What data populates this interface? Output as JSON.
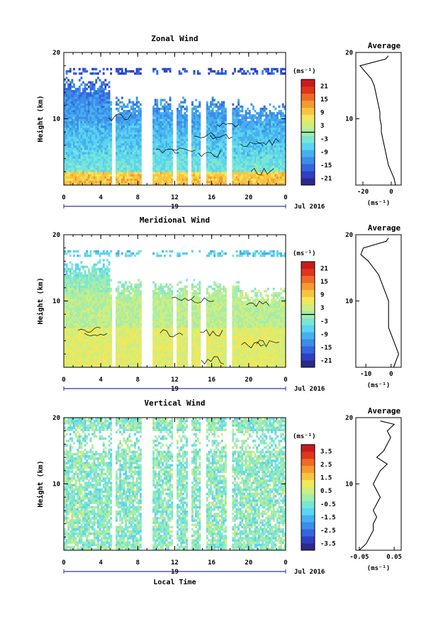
{
  "chart_data": [
    {
      "type": "heatmap",
      "title": "Zonal Wind",
      "ylabel": "Height (km)",
      "ylim": [
        0,
        20
      ],
      "y_ticks": [
        "20",
        "10"
      ],
      "x_ticks": [
        "0",
        "4",
        "8",
        "12",
        "16",
        "20",
        "0"
      ],
      "xlim": [
        0,
        24
      ],
      "day_label": "19",
      "date_label": "Jul 2016",
      "colorbar": {
        "unit": "(ms⁻¹)",
        "ticks": [
          "21",
          "15",
          "9",
          "3",
          "-3",
          "-9",
          "-15",
          "-21"
        ],
        "range": [
          -24,
          24
        ],
        "colors": [
          "#2a2a8c",
          "#2f3fc0",
          "#3366dd",
          "#3c8ce8",
          "#46b0ef",
          "#5ad4f0",
          "#79e6d4",
          "#a4ecac",
          "#cdee7e",
          "#f0e85a",
          "#f8c440",
          "#f59a30",
          "#ee6a25",
          "#e0341e",
          "#c81c1c"
        ]
      },
      "avg_profile": {
        "title": "Average",
        "xlabel": "(ms⁻¹)",
        "x_ticks": [
          "-20",
          "0"
        ],
        "xlim": [
          -25,
          7
        ],
        "heights": [
          0,
          1,
          2,
          3,
          4,
          5,
          6,
          7,
          8,
          9,
          10,
          11,
          12,
          13,
          14,
          15,
          16,
          17,
          18,
          19,
          19.5
        ],
        "values": [
          3,
          2,
          0,
          -2,
          -3,
          -4,
          -5,
          -6,
          -7,
          -7,
          -8,
          -8,
          -9,
          -10,
          -11,
          -12,
          -14,
          -18,
          -22,
          -4,
          -2
        ]
      },
      "base_value": -7,
      "gaps": [
        [
          5.2,
          5.6
        ],
        [
          8.4,
          8.9
        ],
        [
          9.1,
          9.5
        ],
        [
          11.8,
          12.2
        ],
        [
          13.4,
          13.8
        ],
        [
          14.8,
          15.3
        ],
        [
          17.6,
          18.1
        ]
      ]
    },
    {
      "type": "heatmap",
      "title": "Meridional Wind",
      "ylabel": "Height (km)",
      "ylim": [
        0,
        20
      ],
      "y_ticks": [
        "20",
        "10"
      ],
      "x_ticks": [
        "0",
        "4",
        "8",
        "12",
        "16",
        "20",
        "0"
      ],
      "xlim": [
        0,
        24
      ],
      "day_label": "19",
      "date_label": "Jul 2016",
      "colorbar": {
        "unit": "(ms⁻¹)",
        "ticks": [
          "21",
          "15",
          "9",
          "3",
          "-3",
          "-9",
          "-15",
          "-21"
        ],
        "range": [
          -24,
          24
        ],
        "colors": [
          "#2a2a8c",
          "#2f3fc0",
          "#3366dd",
          "#3c8ce8",
          "#46b0ef",
          "#5ad4f0",
          "#79e6d4",
          "#a4ecac",
          "#cdee7e",
          "#f0e85a",
          "#f8c440",
          "#f59a30",
          "#ee6a25",
          "#e0341e",
          "#c81c1c"
        ]
      },
      "avg_profile": {
        "title": "Average",
        "xlabel": "(ms⁻¹)",
        "x_ticks": [
          "-10",
          "0"
        ],
        "xlim": [
          -14,
          4
        ],
        "heights": [
          0,
          1,
          2,
          3,
          4,
          5,
          6,
          7,
          8,
          9,
          10,
          11,
          12,
          13,
          14,
          15,
          16,
          17,
          18,
          19,
          19.5
        ],
        "values": [
          1,
          2,
          3,
          2,
          1,
          0,
          -1,
          -1,
          -1,
          -1,
          -1,
          -2,
          -3,
          -4,
          -5,
          -7,
          -9,
          -12,
          -11,
          -2,
          -1
        ]
      },
      "base_value": 2,
      "gaps": [
        [
          5.2,
          5.6
        ],
        [
          8.4,
          8.9
        ],
        [
          9.1,
          9.5
        ],
        [
          11.8,
          12.2
        ],
        [
          13.4,
          13.8
        ],
        [
          14.8,
          15.3
        ],
        [
          17.6,
          18.1
        ]
      ]
    },
    {
      "type": "heatmap",
      "title": "Vertical Wind",
      "ylabel": "Height (km)",
      "xlabel": "Local Time",
      "ylim": [
        0,
        20
      ],
      "y_ticks": [
        "20",
        "10"
      ],
      "x_ticks": [
        "0",
        "4",
        "8",
        "12",
        "16",
        "20",
        "0"
      ],
      "xlim": [
        0,
        24
      ],
      "day_label": "19",
      "date_label": "Jul 2016",
      "colorbar": {
        "unit": "(ms⁻¹)",
        "ticks": [
          "3.5",
          "2.5",
          "1.5",
          "0.5",
          "-0.5",
          "-1.5",
          "-2.5",
          "-3.5"
        ],
        "range": [
          -4,
          4
        ],
        "colors": [
          "#2a2a8c",
          "#2f3fc0",
          "#3366dd",
          "#3c8ce8",
          "#46b0ef",
          "#5ad4f0",
          "#79e6d4",
          "#a4ecac",
          "#cdee7e",
          "#f0e85a",
          "#f8c440",
          "#f59a30",
          "#ee6a25",
          "#e0341e",
          "#c81c1c"
        ]
      },
      "avg_profile": {
        "title": "Average",
        "xlabel": "(ms⁻¹)",
        "x_ticks": [
          "-0.05",
          "0.05"
        ],
        "xlim": [
          -0.06,
          0.07
        ],
        "heights": [
          0,
          1,
          2,
          3,
          4,
          5,
          6,
          7,
          8,
          9,
          10,
          11,
          12,
          13,
          14,
          15,
          16,
          17,
          18,
          19,
          19.5
        ],
        "values": [
          -0.05,
          -0.03,
          -0.02,
          -0.01,
          -0.01,
          0.0,
          -0.01,
          0.0,
          0.01,
          0.0,
          -0.01,
          0.0,
          0.01,
          0.03,
          0.0,
          0.02,
          0.03,
          0.04,
          0.03,
          0.05,
          0.01
        ]
      },
      "base_value": -0.3,
      "gaps": [
        [
          5.2,
          5.6
        ],
        [
          8.4,
          8.9
        ],
        [
          9.1,
          9.5
        ],
        [
          11.8,
          12.2
        ],
        [
          13.4,
          13.8
        ],
        [
          14.8,
          15.3
        ],
        [
          17.6,
          18.1
        ]
      ]
    }
  ]
}
